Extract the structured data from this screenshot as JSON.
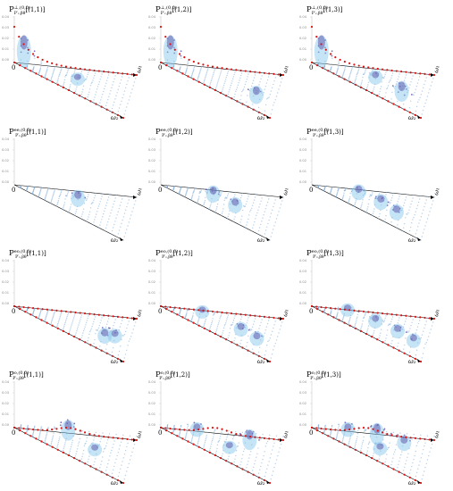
{
  "axis_labels": {
    "origin": "0",
    "omega1": "ω₁",
    "omega2": "ω₂"
  },
  "z_ticks": [
    "0.04",
    "0.03",
    "0.02",
    "0.01",
    "0.00"
  ],
  "rows": [
    {
      "superscript": "⊥,(0,0)",
      "panels": [
        {
          "title_base": "P",
          "title_sub": "P′ᵥ,βθ",
          "index": "[(1,1)]",
          "red_edge": true,
          "surface": "low",
          "bumps": [
            [
              0.08,
              0.1,
              1.0
            ],
            [
              0.55,
              0.55,
              0.25
            ]
          ]
        },
        {
          "title_base": "P",
          "title_sub": "P′ᵥ,βθ",
          "index": "[(1,2)]",
          "red_edge": true,
          "surface": "low",
          "bumps": [
            [
              0.08,
              0.1,
              1.0
            ],
            [
              0.85,
              0.75,
              0.45
            ]
          ]
        },
        {
          "title_base": "P",
          "title_sub": "P′ᵥ,βθ",
          "index": "[(1,3)]",
          "red_edge": true,
          "surface": "low",
          "bumps": [
            [
              0.08,
              0.1,
              1.0
            ],
            [
              0.55,
              0.5,
              0.3
            ],
            [
              0.8,
              0.75,
              0.55
            ]
          ]
        }
      ]
    },
    {
      "superscript": "ee,(0,0)",
      "panels": [
        {
          "title_base": "P",
          "title_sub": "P′ᵥ,βθ",
          "index": "[(1,1)]",
          "red_edge": false,
          "surface": "mid",
          "bumps": [
            [
              0.55,
              0.5,
              0.4
            ]
          ]
        },
        {
          "title_base": "P",
          "title_sub": "P′ᵥ,βθ",
          "index": "[(1,2)]",
          "red_edge": false,
          "surface": "mid",
          "bumps": [
            [
              0.45,
              0.45,
              0.4
            ],
            [
              0.65,
              0.6,
              0.35
            ]
          ]
        },
        {
          "title_base": "P",
          "title_sub": "P′ᵥ,βθ",
          "index": "[(1,3)]",
          "red_edge": false,
          "surface": "mid",
          "bumps": [
            [
              0.4,
              0.4,
              0.35
            ],
            [
              0.6,
              0.55,
              0.35
            ],
            [
              0.75,
              0.7,
              0.35
            ]
          ]
        }
      ]
    },
    {
      "superscript": "eo,(0,0)",
      "panels": [
        {
          "title_base": "P",
          "title_sub": "P′ᵥ,βθ",
          "index": "[(1,1)]",
          "red_edge": true,
          "surface": "mid",
          "bumps": [
            [
              0.8,
              0.7,
              0.35
            ],
            [
              0.88,
              0.6,
              0.3
            ]
          ]
        },
        {
          "title_base": "P",
          "title_sub": "P′ᵥ,βθ",
          "index": "[(1,2)]",
          "red_edge": true,
          "surface": "mid",
          "bumps": [
            [
              0.35,
              0.3,
              0.25
            ],
            [
              0.7,
              0.6,
              0.3
            ],
            [
              0.85,
              0.7,
              0.3
            ]
          ]
        },
        {
          "title_base": "P",
          "title_sub": "P′ᵥ,βθ",
          "index": "[(1,3)]",
          "red_edge": true,
          "surface": "mid",
          "bumps": [
            [
              0.3,
              0.25,
              0.25
            ],
            [
              0.55,
              0.5,
              0.3
            ],
            [
              0.75,
              0.6,
              0.3
            ],
            [
              0.9,
              0.7,
              0.3
            ]
          ]
        }
      ]
    },
    {
      "superscript": "o,(0,0)",
      "panels": [
        {
          "title_base": "P",
          "title_sub": "P′ᵥ,βθ",
          "index": "[(1,1)]",
          "red_edge": true,
          "surface": "high",
          "bumps": [
            [
              0.45,
              0.2,
              0.55
            ],
            [
              0.7,
              0.55,
              0.25
            ]
          ]
        },
        {
          "title_base": "P",
          "title_sub": "P′ᵥ,βθ",
          "index": "[(1,2)]",
          "red_edge": true,
          "surface": "high",
          "bumps": [
            [
              0.3,
              0.15,
              0.3
            ],
            [
              0.75,
              0.3,
              0.55
            ],
            [
              0.6,
              0.6,
              0.25
            ]
          ]
        },
        {
          "title_base": "P",
          "title_sub": "P′ᵥ,βθ",
          "index": "[(1,3)]",
          "red_edge": true,
          "surface": "high",
          "bumps": [
            [
              0.3,
              0.15,
              0.3
            ],
            [
              0.55,
              0.3,
              0.6
            ],
            [
              0.78,
              0.3,
              0.35
            ],
            [
              0.6,
              0.65,
              0.25
            ]
          ]
        }
      ]
    }
  ],
  "colors": {
    "surface": "#7fc4ea",
    "peak": "#5a4fa8",
    "dots": "#7aa9d8",
    "red": "#e01010",
    "axis": "#000000",
    "grid": "#c8c8c8"
  }
}
